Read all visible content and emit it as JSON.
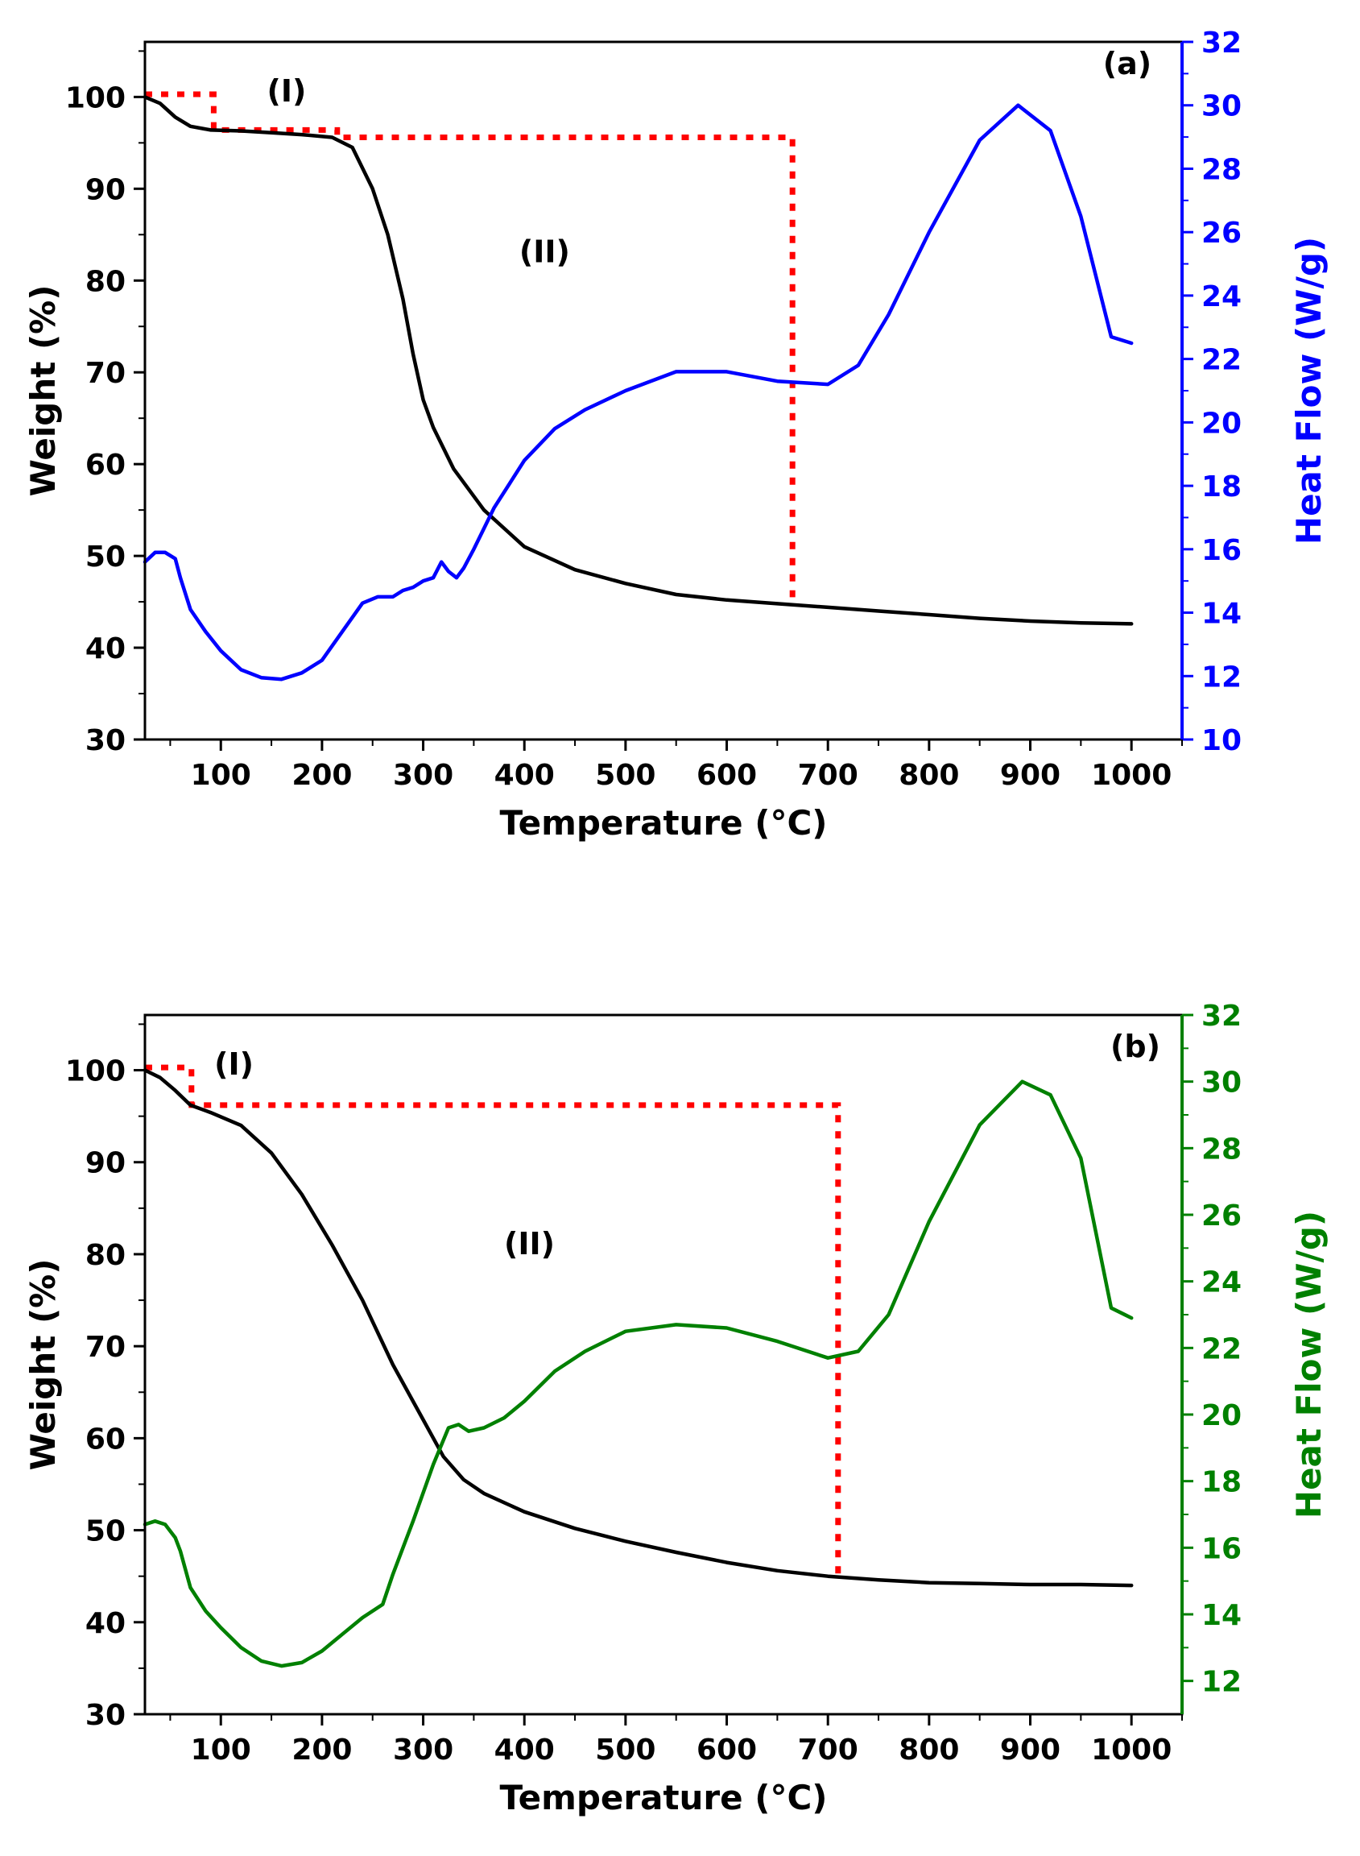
{
  "chart_data": [
    {
      "type": "line",
      "panel_label": "(a)",
      "xlabel": "Temperature (°C)",
      "ylabel": "Weight (%)",
      "y2label": "Heat Flow (W/g)",
      "xlim": [
        25,
        1050
      ],
      "ylim": [
        30,
        106
      ],
      "y2lim": [
        10,
        32
      ],
      "xticks": [
        100,
        200,
        300,
        400,
        500,
        600,
        700,
        800,
        900,
        1000
      ],
      "yticks": [
        30,
        40,
        50,
        60,
        70,
        80,
        90,
        100
      ],
      "y2ticks": [
        10,
        12,
        14,
        16,
        18,
        20,
        22,
        24,
        26,
        28,
        30,
        32
      ],
      "colors": {
        "weight": "#000000",
        "heat": "#0000FF",
        "region": "#FF0000"
      },
      "annotations": [
        {
          "text": "(I)",
          "x": 165,
          "y": 99.5
        },
        {
          "text": "(II)",
          "x": 420,
          "y": 82
        }
      ],
      "region_line": {
        "x": [
          25,
          93,
          93,
          215,
          215,
          665,
          665
        ],
        "y": [
          100.3,
          100.3,
          96.4,
          96.4,
          95.6,
          95.6,
          45.5
        ]
      },
      "series": [
        {
          "name": "Weight",
          "axis": "left",
          "x": [
            25,
            40,
            55,
            70,
            90,
            120,
            150,
            180,
            210,
            230,
            250,
            265,
            280,
            290,
            300,
            310,
            330,
            360,
            400,
            450,
            500,
            550,
            600,
            650,
            700,
            750,
            800,
            850,
            900,
            950,
            1000
          ],
          "y": [
            100,
            99.3,
            97.8,
            96.8,
            96.4,
            96.3,
            96.1,
            95.9,
            95.6,
            94.5,
            90,
            85,
            78,
            72,
            67,
            64,
            59.5,
            55,
            51,
            48.5,
            47,
            45.8,
            45.2,
            44.8,
            44.4,
            44,
            43.6,
            43.2,
            42.9,
            42.7,
            42.6
          ]
        },
        {
          "name": "Heat Flow",
          "axis": "right",
          "x": [
            25,
            35,
            45,
            55,
            60,
            70,
            85,
            100,
            120,
            140,
            160,
            180,
            200,
            220,
            240,
            255,
            270,
            280,
            290,
            300,
            310,
            318,
            325,
            333,
            340,
            350,
            370,
            400,
            430,
            460,
            500,
            550,
            600,
            650,
            700,
            730,
            760,
            800,
            850,
            888,
            920,
            950,
            980,
            1000
          ],
          "y": [
            15.6,
            15.9,
            15.9,
            15.7,
            15.1,
            14.1,
            13.4,
            12.8,
            12.2,
            11.95,
            11.9,
            12.1,
            12.5,
            13.4,
            14.3,
            14.5,
            14.5,
            14.7,
            14.8,
            15.0,
            15.1,
            15.6,
            15.3,
            15.1,
            15.4,
            16.0,
            17.3,
            18.8,
            19.8,
            20.4,
            21.0,
            21.6,
            21.6,
            21.3,
            21.2,
            21.8,
            23.4,
            26.0,
            28.9,
            30.0,
            29.2,
            26.5,
            22.7,
            22.5
          ]
        }
      ]
    },
    {
      "type": "line",
      "panel_label": "(b)",
      "xlabel": "Temperature (°C)",
      "ylabel": "Weight (%)",
      "y2label": "Heat Flow (W/g)",
      "xlim": [
        25,
        1050
      ],
      "ylim": [
        30,
        106
      ],
      "y2lim": [
        11,
        32
      ],
      "xticks": [
        100,
        200,
        300,
        400,
        500,
        600,
        700,
        800,
        900,
        1000
      ],
      "yticks": [
        30,
        40,
        50,
        60,
        70,
        80,
        90,
        100
      ],
      "y2ticks": [
        12,
        14,
        16,
        18,
        20,
        22,
        24,
        26,
        28,
        30,
        32
      ],
      "colors": {
        "weight": "#000000",
        "heat": "#008000",
        "region": "#FF0000"
      },
      "annotations": [
        {
          "text": "(I)",
          "x": 113,
          "y": 99.5
        },
        {
          "text": "(II)",
          "x": 405,
          "y": 80
        }
      ],
      "region_line": {
        "x": [
          25,
          71,
          71,
          710,
          710
        ],
        "y": [
          100.3,
          100.3,
          96.2,
          96.2,
          45.3
        ]
      },
      "series": [
        {
          "name": "Weight",
          "axis": "left",
          "x": [
            25,
            40,
            55,
            70,
            90,
            120,
            150,
            180,
            210,
            240,
            270,
            300,
            320,
            340,
            360,
            400,
            450,
            500,
            550,
            600,
            650,
            700,
            750,
            800,
            850,
            900,
            950,
            1000
          ],
          "y": [
            100,
            99.2,
            97.8,
            96.2,
            95.4,
            94,
            91,
            86.5,
            81,
            75,
            68,
            62,
            58,
            55.5,
            54,
            52,
            50.2,
            48.8,
            47.6,
            46.5,
            45.6,
            45,
            44.6,
            44.3,
            44.2,
            44.1,
            44.1,
            44
          ]
        },
        {
          "name": "Heat Flow",
          "axis": "right",
          "x": [
            25,
            35,
            45,
            55,
            60,
            70,
            85,
            100,
            120,
            140,
            160,
            180,
            200,
            220,
            240,
            260,
            270,
            290,
            310,
            325,
            335,
            345,
            360,
            380,
            400,
            430,
            460,
            500,
            550,
            600,
            650,
            700,
            730,
            760,
            800,
            850,
            892,
            920,
            950,
            980,
            1000
          ],
          "y": [
            16.7,
            16.8,
            16.7,
            16.3,
            15.9,
            14.8,
            14.1,
            13.6,
            13.0,
            12.6,
            12.45,
            12.55,
            12.9,
            13.4,
            13.9,
            14.3,
            15.2,
            16.8,
            18.5,
            19.6,
            19.7,
            19.5,
            19.6,
            19.9,
            20.4,
            21.3,
            21.9,
            22.5,
            22.7,
            22.6,
            22.2,
            21.7,
            21.9,
            23.0,
            25.8,
            28.7,
            30.0,
            29.6,
            27.7,
            23.2,
            22.9
          ]
        }
      ]
    }
  ]
}
